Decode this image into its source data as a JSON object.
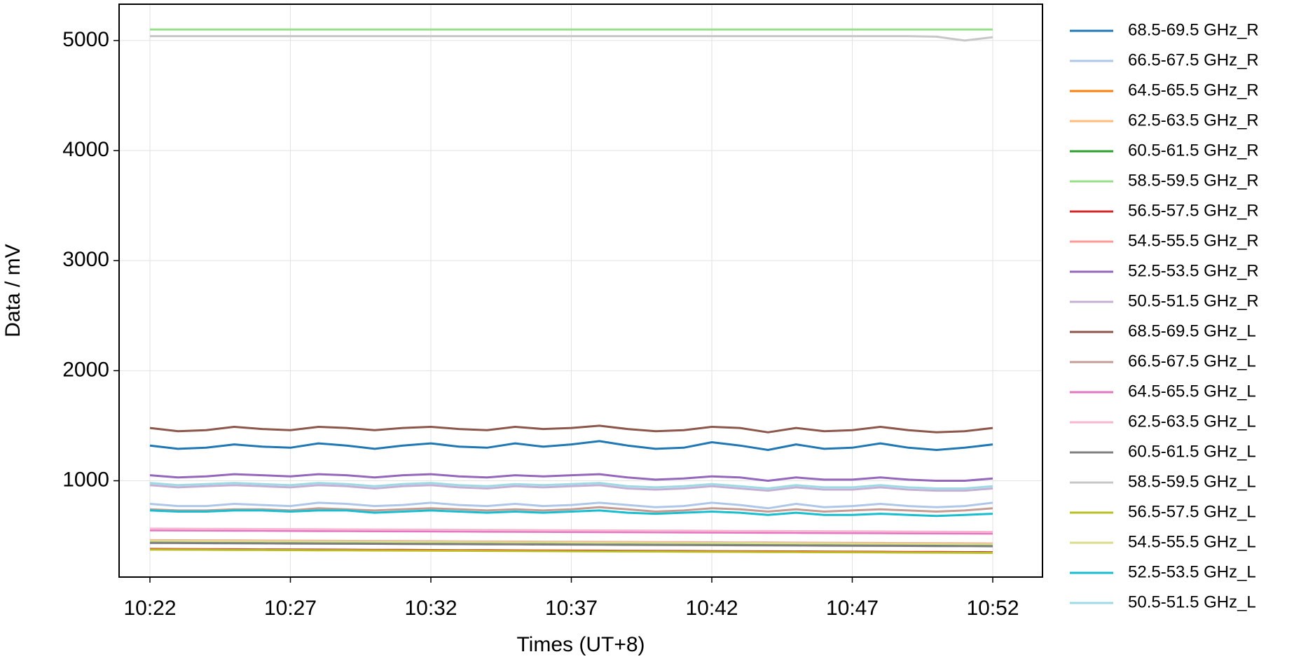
{
  "chart_data": {
    "type": "line",
    "x_label": "Times (UT+8)",
    "y_label": "Data / mV",
    "x": [
      "10:22",
      "10:23",
      "10:24",
      "10:25",
      "10:26",
      "10:27",
      "10:28",
      "10:29",
      "10:30",
      "10:31",
      "10:32",
      "10:33",
      "10:34",
      "10:35",
      "10:36",
      "10:37",
      "10:38",
      "10:39",
      "10:40",
      "10:41",
      "10:42",
      "10:43",
      "10:44",
      "10:45",
      "10:46",
      "10:47",
      "10:48",
      "10:49",
      "10:50",
      "10:51",
      "10:52"
    ],
    "xticks": [
      "10:22",
      "10:27",
      "10:32",
      "10:37",
      "10:42",
      "10:47",
      "10:52"
    ],
    "ylim": [
      125,
      5330
    ],
    "yticks": [
      1000,
      2000,
      3000,
      4000,
      5000
    ],
    "grid": true,
    "legend_position": "right",
    "series": [
      {
        "name": "68.5-69.5 GHz_R",
        "color": "#1f77b4",
        "values": [
          1320,
          1290,
          1300,
          1330,
          1310,
          1300,
          1340,
          1320,
          1290,
          1320,
          1340,
          1310,
          1300,
          1340,
          1310,
          1330,
          1360,
          1320,
          1290,
          1300,
          1350,
          1320,
          1280,
          1330,
          1290,
          1300,
          1340,
          1300,
          1280,
          1300,
          1330
        ]
      },
      {
        "name": "66.5-67.5 GHz_R",
        "color": "#aec7e8",
        "values": [
          790,
          770,
          770,
          790,
          780,
          770,
          800,
          790,
          770,
          780,
          800,
          780,
          770,
          790,
          770,
          780,
          800,
          780,
          760,
          770,
          800,
          780,
          750,
          790,
          760,
          770,
          790,
          770,
          760,
          770,
          800
        ]
      },
      {
        "name": "64.5-65.5 GHz_R",
        "color": "#ff7f0e",
        "values": [
          555,
          554,
          553,
          552,
          551,
          550,
          549,
          548,
          547,
          546,
          545,
          544,
          543,
          542,
          541,
          540,
          539,
          538,
          537,
          536,
          535,
          534,
          533,
          532,
          531,
          530,
          529,
          528,
          527,
          526,
          525
        ]
      },
      {
        "name": "62.5-63.5 GHz_R",
        "color": "#ffbb78",
        "values": [
          560,
          559,
          558,
          557,
          556,
          555,
          554,
          553,
          552,
          551,
          550,
          549,
          548,
          547,
          546,
          545,
          544,
          543,
          542,
          541,
          540,
          539,
          538,
          537,
          536,
          535,
          534,
          533,
          532,
          531,
          530
        ]
      },
      {
        "name": "60.5-61.5 GHz_R",
        "color": "#2ca02c",
        "values": [
          440,
          439,
          438,
          437,
          436,
          435,
          434,
          433,
          432,
          431,
          430,
          429,
          428,
          427,
          426,
          425,
          424,
          423,
          422,
          421,
          420,
          419,
          418,
          417,
          416,
          415,
          414,
          413,
          412,
          411,
          410
        ]
      },
      {
        "name": "58.5-59.5 GHz_R",
        "color": "#98df8a",
        "values": [
          5100,
          5100,
          5100,
          5100,
          5100,
          5100,
          5100,
          5100,
          5100,
          5100,
          5100,
          5100,
          5100,
          5100,
          5100,
          5100,
          5100,
          5100,
          5100,
          5100,
          5100,
          5100,
          5100,
          5100,
          5100,
          5100,
          5100,
          5100,
          5100,
          5100,
          5100
        ]
      },
      {
        "name": "56.5-57.5 GHz_R",
        "color": "#d62728",
        "values": [
          380,
          379,
          378,
          377,
          376,
          375,
          374,
          373,
          372,
          371,
          370,
          369,
          368,
          367,
          366,
          365,
          364,
          363,
          362,
          361,
          360,
          359,
          358,
          357,
          356,
          355,
          354,
          353,
          352,
          351,
          350
        ]
      },
      {
        "name": "54.5-55.5 GHz_R",
        "color": "#ff9896",
        "values": [
          460,
          459,
          458,
          457,
          456,
          455,
          454,
          453,
          452,
          451,
          450,
          449,
          448,
          447,
          446,
          445,
          444,
          443,
          442,
          441,
          440,
          439,
          438,
          437,
          436,
          435,
          434,
          433,
          432,
          431,
          430
        ]
      },
      {
        "name": "52.5-53.5 GHz_R",
        "color": "#9467bd",
        "values": [
          1050,
          1030,
          1040,
          1060,
          1050,
          1040,
          1060,
          1050,
          1030,
          1050,
          1060,
          1040,
          1030,
          1050,
          1040,
          1050,
          1060,
          1030,
          1010,
          1020,
          1040,
          1030,
          1000,
          1030,
          1010,
          1010,
          1030,
          1010,
          1000,
          1000,
          1020
        ]
      },
      {
        "name": "50.5-51.5 GHz_R",
        "color": "#c5b0d5",
        "values": [
          960,
          940,
          950,
          960,
          950,
          940,
          960,
          950,
          930,
          950,
          960,
          940,
          930,
          950,
          940,
          950,
          960,
          930,
          920,
          930,
          950,
          930,
          910,
          940,
          920,
          920,
          940,
          920,
          910,
          910,
          930
        ]
      },
      {
        "name": "68.5-69.5 GHz_L",
        "color": "#8c564b",
        "values": [
          1480,
          1450,
          1460,
          1490,
          1470,
          1460,
          1490,
          1480,
          1460,
          1480,
          1490,
          1470,
          1460,
          1490,
          1470,
          1480,
          1500,
          1470,
          1450,
          1460,
          1490,
          1480,
          1440,
          1480,
          1450,
          1460,
          1490,
          1460,
          1440,
          1450,
          1480
        ]
      },
      {
        "name": "66.5-67.5 GHz_L",
        "color": "#c49c94",
        "values": [
          740,
          730,
          730,
          740,
          740,
          730,
          750,
          740,
          730,
          740,
          750,
          740,
          730,
          740,
          730,
          740,
          760,
          740,
          720,
          730,
          750,
          740,
          720,
          740,
          720,
          730,
          740,
          730,
          720,
          730,
          750
        ]
      },
      {
        "name": "64.5-65.5 GHz_L",
        "color": "#e377c2",
        "values": [
          550,
          549,
          548,
          547,
          546,
          545,
          544,
          543,
          542,
          541,
          540,
          539,
          538,
          537,
          536,
          535,
          534,
          533,
          532,
          531,
          530,
          529,
          528,
          527,
          526,
          525,
          524,
          523,
          522,
          521,
          520
        ]
      },
      {
        "name": "62.5-63.5 GHz_L",
        "color": "#f7b6d2",
        "values": [
          565,
          564,
          563,
          562,
          561,
          560,
          559,
          558,
          557,
          556,
          555,
          554,
          553,
          552,
          551,
          550,
          549,
          548,
          547,
          546,
          545,
          544,
          543,
          542,
          541,
          540,
          539,
          538,
          537,
          536,
          535
        ]
      },
      {
        "name": "60.5-61.5 GHz_L",
        "color": "#7f7f7f",
        "values": [
          435,
          434,
          433,
          432,
          431,
          430,
          429,
          428,
          427,
          426,
          425,
          424,
          423,
          422,
          421,
          420,
          419,
          418,
          417,
          416,
          415,
          414,
          413,
          412,
          411,
          410,
          409,
          408,
          407,
          406,
          405
        ]
      },
      {
        "name": "58.5-59.5 GHz_L",
        "color": "#c7c7c7",
        "values": [
          5040,
          5040,
          5040,
          5040,
          5040,
          5040,
          5040,
          5040,
          5040,
          5040,
          5040,
          5040,
          5040,
          5040,
          5040,
          5040,
          5040,
          5040,
          5040,
          5040,
          5040,
          5040,
          5040,
          5040,
          5040,
          5040,
          5040,
          5040,
          5035,
          5000,
          5030
        ]
      },
      {
        "name": "56.5-57.5 GHz_L",
        "color": "#bcbd22",
        "values": [
          375,
          374,
          373,
          372,
          371,
          370,
          369,
          368,
          367,
          366,
          365,
          364,
          363,
          362,
          361,
          360,
          359,
          358,
          357,
          356,
          355,
          354,
          353,
          352,
          351,
          350,
          349,
          348,
          347,
          346,
          345
        ]
      },
      {
        "name": "54.5-55.5 GHz_L",
        "color": "#dbdb8d",
        "values": [
          455,
          454,
          453,
          452,
          451,
          450,
          449,
          448,
          447,
          446,
          445,
          444,
          443,
          442,
          441,
          440,
          439,
          438,
          437,
          436,
          435,
          434,
          433,
          432,
          431,
          430,
          429,
          428,
          427,
          426,
          425
        ]
      },
      {
        "name": "52.5-53.5 GHz_L",
        "color": "#17becf",
        "values": [
          730,
          720,
          720,
          730,
          730,
          720,
          730,
          730,
          710,
          720,
          730,
          720,
          710,
          720,
          710,
          720,
          730,
          710,
          700,
          710,
          720,
          710,
          690,
          710,
          690,
          690,
          700,
          690,
          680,
          690,
          700
        ]
      },
      {
        "name": "50.5-51.5 GHz_L",
        "color": "#9edae5",
        "values": [
          980,
          960,
          970,
          980,
          970,
          960,
          980,
          970,
          950,
          970,
          980,
          960,
          950,
          970,
          960,
          970,
          980,
          950,
          940,
          950,
          970,
          950,
          930,
          960,
          940,
          940,
          960,
          940,
          930,
          930,
          950
        ]
      }
    ]
  }
}
